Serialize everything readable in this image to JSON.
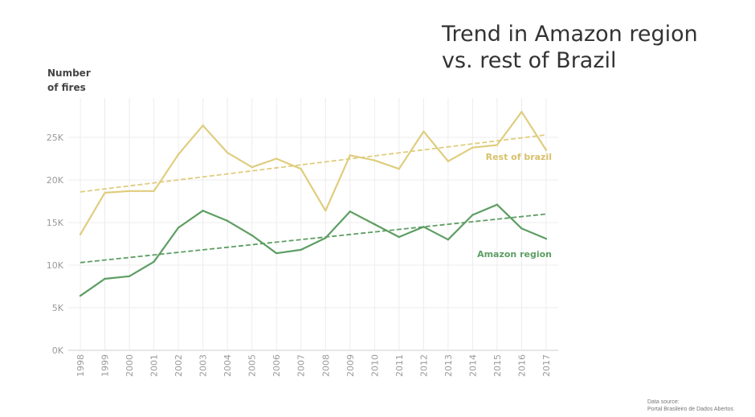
{
  "title": {
    "line1": "Trend in Amazon region",
    "line2": "vs. rest of Brazil"
  },
  "source": {
    "line1": "Data source:",
    "line2": "Portal Brasileiro de Dados Abertos"
  },
  "chart_data": {
    "type": "line",
    "ylabel_line1": "Number",
    "ylabel_line2": "of fires",
    "ylim": [
      0,
      29000
    ],
    "yticks": [
      0,
      5000,
      10000,
      15000,
      20000,
      25000
    ],
    "ytick_labels": [
      "0K",
      "5K",
      "10K",
      "15K",
      "20K",
      "25K"
    ],
    "x": [
      "1998",
      "1999",
      "2000",
      "2001",
      "2002",
      "2003",
      "2004",
      "2005",
      "2006",
      "2007",
      "2008",
      "2009",
      "2010",
      "2011",
      "2012",
      "2013",
      "2014",
      "2015",
      "2016",
      "2017"
    ],
    "grid": true,
    "series": [
      {
        "name": "Rest of brazil",
        "color": "#dfcd7e",
        "values": [
          13600,
          18500,
          18700,
          18700,
          23000,
          26400,
          23200,
          21500,
          22500,
          21300,
          16400,
          22900,
          22300,
          21300,
          25700,
          22200,
          23800,
          24100,
          28000,
          23500
        ],
        "trend": [
          18600,
          25300
        ]
      },
      {
        "name": "Amazon region",
        "color": "#5d9e63",
        "values": [
          6400,
          8400,
          8700,
          10400,
          14400,
          16400,
          15200,
          13500,
          11400,
          11800,
          13200,
          16300,
          14800,
          13300,
          14500,
          13000,
          15900,
          17100,
          14300,
          13100
        ],
        "trend": [
          10300,
          16000
        ]
      }
    ]
  }
}
